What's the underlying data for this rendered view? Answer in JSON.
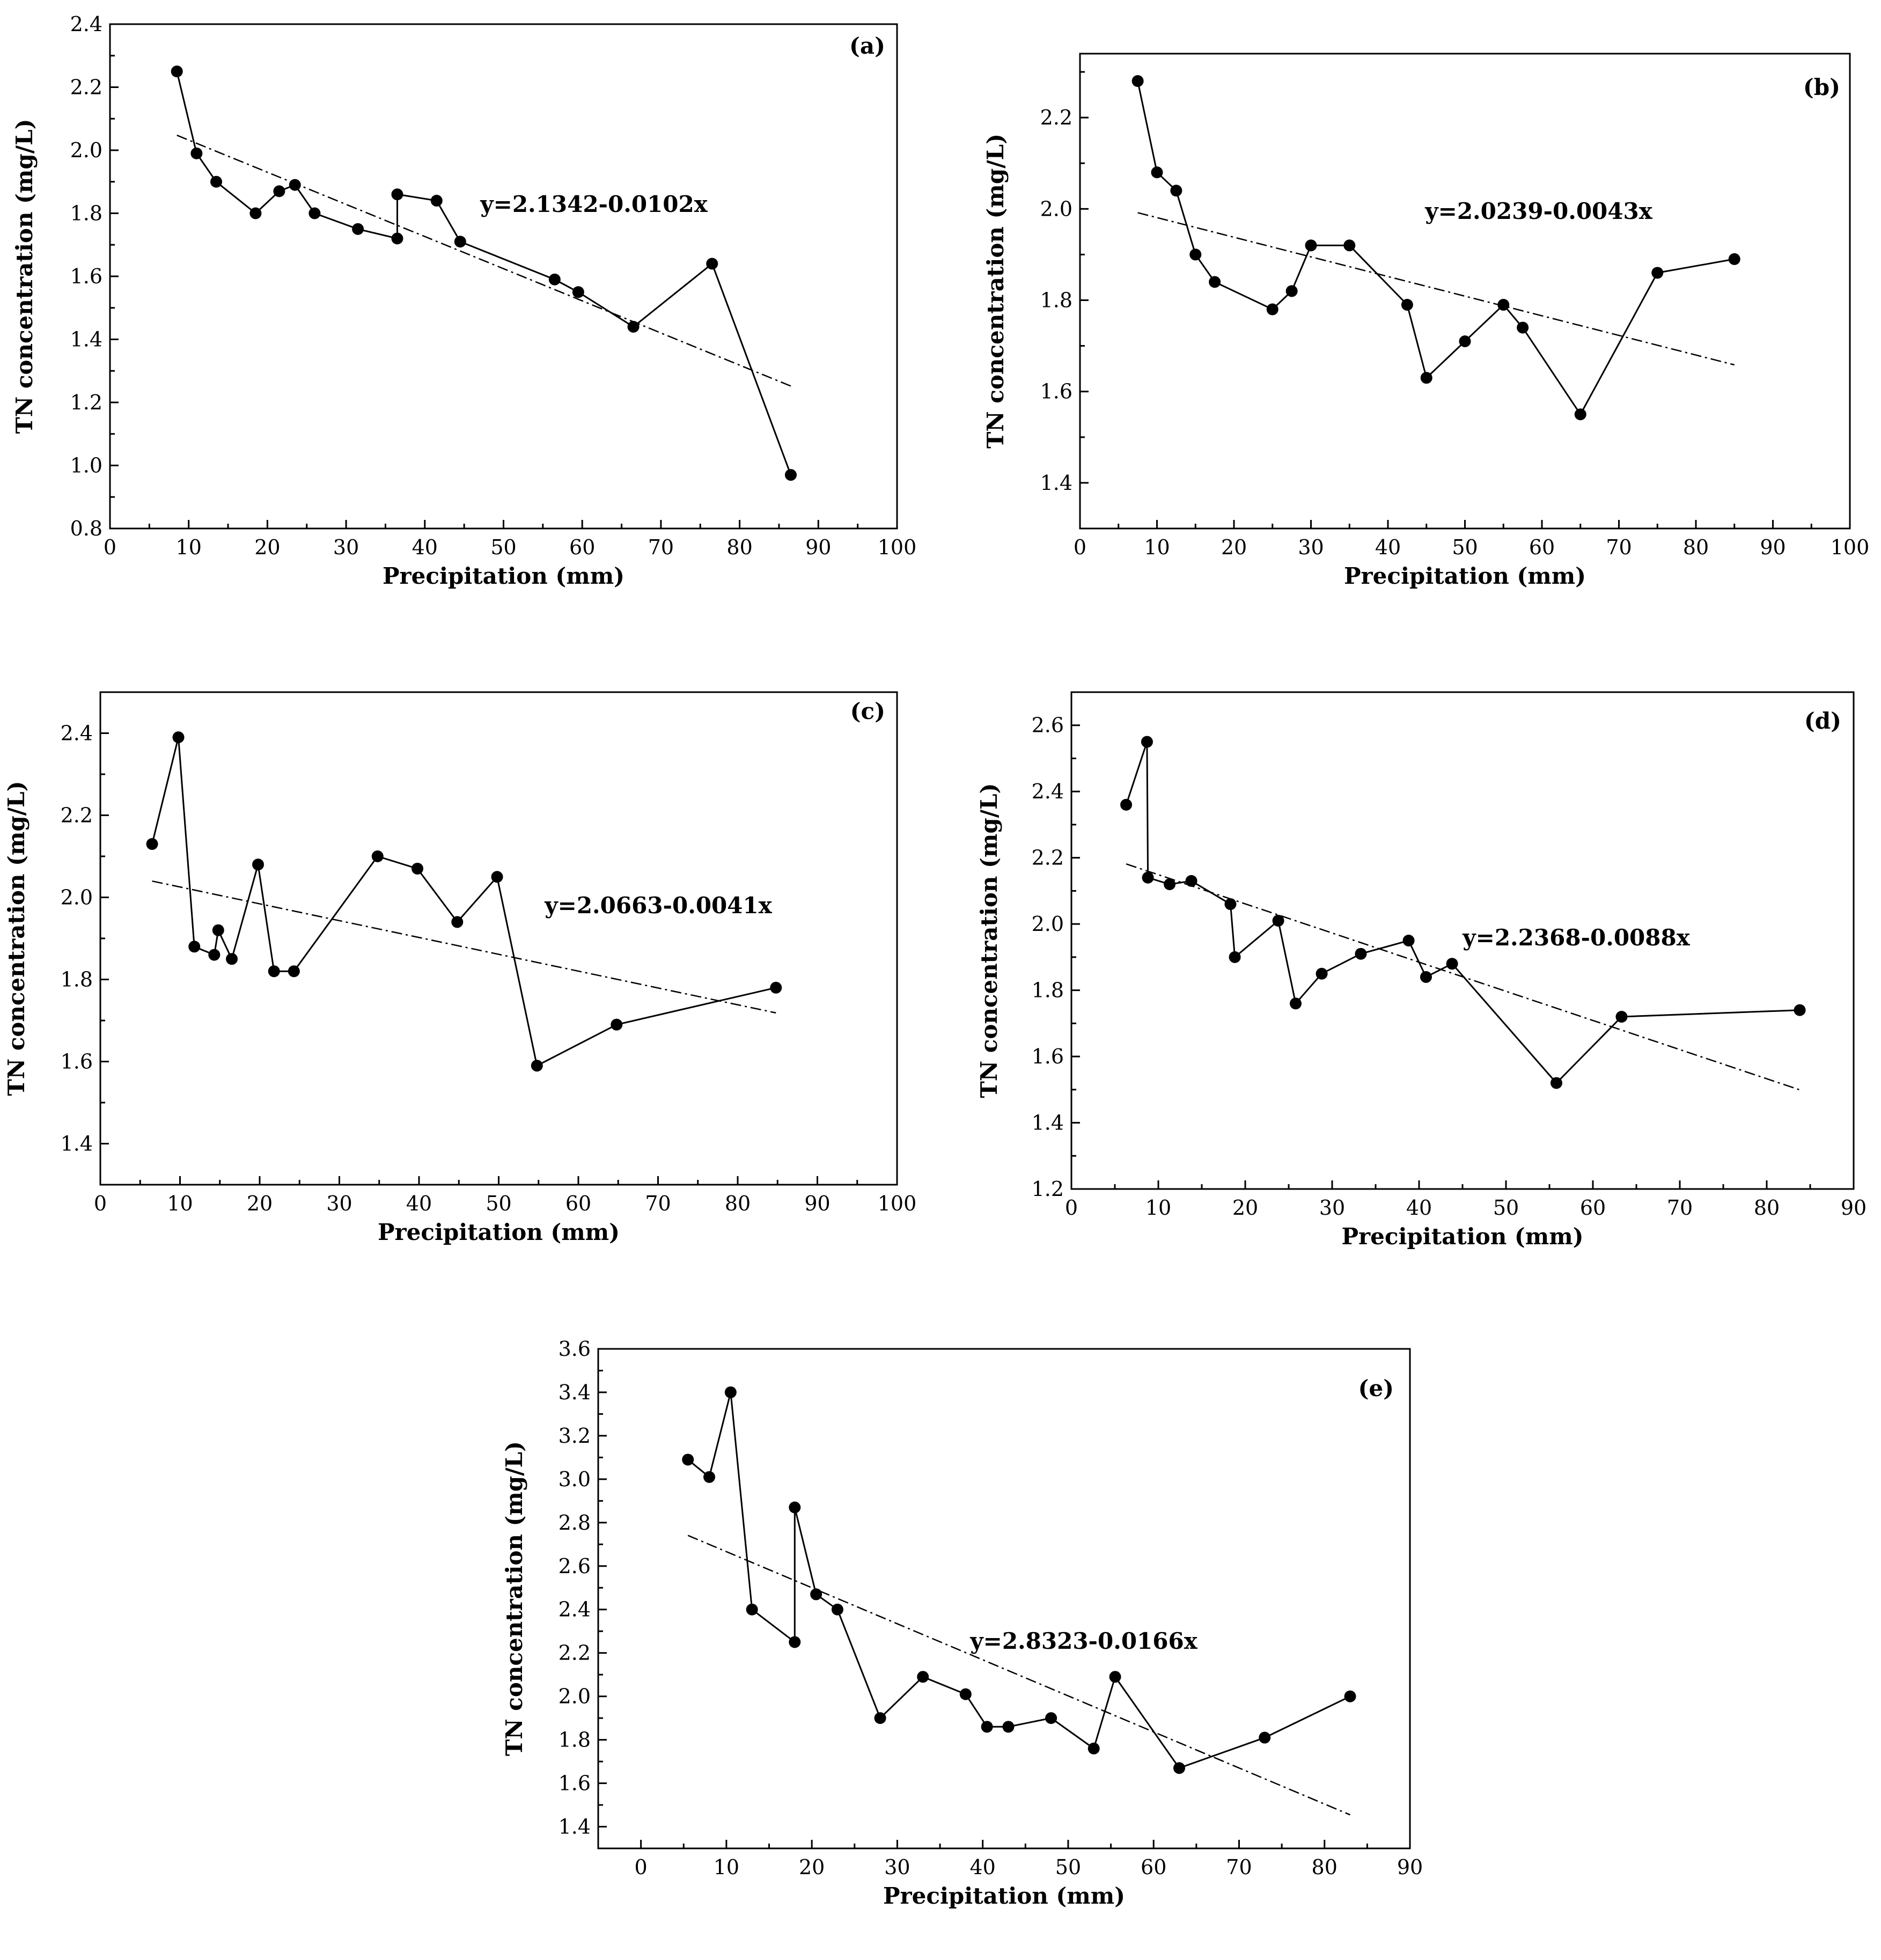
{
  "chart_data": [
    {
      "type": "line",
      "panel_label": "(a)",
      "xlabel": "Precipitation (mm)",
      "ylabel": "TN concentration (mg/L)",
      "xlim": [
        0,
        100
      ],
      "ylim": [
        0.8,
        2.4
      ],
      "xticks": [
        0,
        10,
        20,
        30,
        40,
        50,
        60,
        70,
        80,
        90,
        100
      ],
      "yticks": [
        0.8,
        1.0,
        1.2,
        1.4,
        1.6,
        1.8,
        2.0,
        2.2,
        2.4
      ],
      "x_tick_labels": [
        "0",
        "10",
        "20",
        "30",
        "40",
        "50",
        "60",
        "70",
        "80",
        "90",
        "100"
      ],
      "y_tick_labels": [
        "0.8",
        "1.0",
        "1.2",
        "1.4",
        "1.6",
        "1.8",
        "2.0",
        "2.2",
        "2.4"
      ],
      "equation": "y=2.1342-0.0102x",
      "series": [
        {
          "name": "TN concentration",
          "x": [
            8.5,
            11,
            13.5,
            18.5,
            21.5,
            23.5,
            26,
            31.5,
            36.5,
            36.5,
            41.5,
            44.5,
            56.5,
            59.5,
            66.5,
            76.5,
            86.5
          ],
          "y": [
            2.25,
            1.99,
            1.9,
            1.8,
            1.87,
            1.89,
            1.8,
            1.75,
            1.72,
            1.86,
            1.84,
            1.71,
            1.59,
            1.55,
            1.44,
            1.64,
            0.97
          ]
        }
      ],
      "trendline": {
        "x": [
          8.5,
          86.5
        ]
      }
    },
    {
      "type": "line",
      "panel_label": "(b)",
      "xlabel": "Precipitation (mm)",
      "ylabel": "TN concentration (mg/L)",
      "xlim": [
        0,
        100
      ],
      "ylim": [
        1.3,
        2.34
      ],
      "xticks": [
        0,
        10,
        20,
        30,
        40,
        50,
        60,
        70,
        80,
        90,
        100
      ],
      "yticks": [
        1.4,
        1.6,
        1.8,
        2.0,
        2.2
      ],
      "x_tick_labels": [
        "0",
        "10",
        "20",
        "30",
        "40",
        "50",
        "60",
        "70",
        "80",
        "90",
        "100"
      ],
      "y_tick_labels": [
        "1.4",
        "1.6",
        "1.8",
        "2.0",
        "2.2"
      ],
      "equation": "y=2.0239-0.0043x",
      "series": [
        {
          "name": "TN concentration",
          "x": [
            7.5,
            10,
            12.5,
            15,
            17.5,
            25,
            27.5,
            30,
            35,
            42.5,
            45,
            50,
            55,
            57.5,
            65,
            75,
            85
          ],
          "y": [
            2.28,
            2.08,
            2.04,
            1.9,
            1.84,
            1.78,
            1.82,
            1.92,
            1.92,
            1.79,
            1.63,
            1.71,
            1.79,
            1.74,
            1.55,
            1.86,
            1.89
          ]
        }
      ],
      "trendline": {
        "x": [
          7.5,
          85
        ]
      }
    },
    {
      "type": "line",
      "panel_label": "(c)",
      "xlabel": "Precipitation (mm)",
      "ylabel": "TN concentration (mg/L)",
      "xlim": [
        0,
        100
      ],
      "ylim": [
        1.3,
        2.5
      ],
      "xticks": [
        0,
        10,
        20,
        30,
        40,
        50,
        60,
        70,
        80,
        90,
        100
      ],
      "yticks": [
        1.4,
        1.6,
        1.8,
        2.0,
        2.2,
        2.4
      ],
      "x_tick_labels": [
        "0",
        "10",
        "20",
        "30",
        "40",
        "50",
        "60",
        "70",
        "80",
        "90",
        "100"
      ],
      "y_tick_labels": [
        "1.4",
        "1.6",
        "1.8",
        "2.0",
        "2.2",
        "2.4"
      ],
      "equation": "y=2.0663-0.0041x",
      "series": [
        {
          "name": "TN concentration",
          "x": [
            6.5,
            9.8,
            11.8,
            14.3,
            14.8,
            16.5,
            19.8,
            21.8,
            24.3,
            34.8,
            39.8,
            44.8,
            49.8,
            54.8,
            64.8,
            84.8
          ],
          "y": [
            2.13,
            2.39,
            1.88,
            1.86,
            1.92,
            1.85,
            2.08,
            1.82,
            1.82,
            2.1,
            2.07,
            1.94,
            2.05,
            1.59,
            1.69,
            1.78
          ]
        }
      ],
      "trendline": {
        "x": [
          6.5,
          84.8
        ]
      }
    },
    {
      "type": "line",
      "panel_label": "(d)",
      "xlabel": "Precipitation (mm)",
      "ylabel": "TN concentration (mg/L)",
      "xlim": [
        0,
        90
      ],
      "ylim": [
        1.2,
        2.7
      ],
      "xticks": [
        0,
        10,
        20,
        30,
        40,
        50,
        60,
        70,
        80,
        90
      ],
      "yticks": [
        1.2,
        1.4,
        1.6,
        1.8,
        2.0,
        2.2,
        2.4,
        2.6
      ],
      "x_tick_labels": [
        "0",
        "10",
        "20",
        "30",
        "40",
        "50",
        "60",
        "70",
        "80",
        "90"
      ],
      "y_tick_labels": [
        "1.2",
        "1.4",
        "1.6",
        "1.8",
        "2.0",
        "2.2",
        "2.4",
        "2.6"
      ],
      "equation": "y=2.2368-0.0088x",
      "series": [
        {
          "name": "TN concentration",
          "x": [
            6.3,
            8.7,
            8.8,
            11.3,
            13.8,
            18.3,
            18.8,
            23.8,
            25.8,
            28.8,
            33.3,
            38.8,
            40.8,
            43.8,
            55.8,
            63.3,
            83.8
          ],
          "y": [
            2.36,
            2.55,
            2.14,
            2.12,
            2.13,
            2.06,
            1.9,
            2.01,
            1.76,
            1.85,
            1.91,
            1.95,
            1.84,
            1.88,
            1.52,
            1.72,
            1.74
          ]
        }
      ],
      "trendline": {
        "x": [
          6.3,
          83.8
        ]
      }
    },
    {
      "type": "line",
      "panel_label": "(e)",
      "xlabel": "Precipitation (mm)",
      "ylabel": "TN concentration (mg/L)",
      "xlim": [
        -5,
        90
      ],
      "ylim": [
        1.3,
        3.6
      ],
      "xticks": [
        0,
        10,
        20,
        30,
        40,
        50,
        60,
        70,
        80,
        90
      ],
      "yticks": [
        1.4,
        1.6,
        1.8,
        2.0,
        2.2,
        2.4,
        2.6,
        2.8,
        3.0,
        3.2,
        3.4,
        3.6
      ],
      "x_tick_labels": [
        "0",
        "10",
        "20",
        "30",
        "40",
        "50",
        "60",
        "70",
        "80",
        "90"
      ],
      "y_tick_labels": [
        "1.4",
        "1.6",
        "1.8",
        "2.0",
        "2.2",
        "2.4",
        "2.6",
        "2.8",
        "3.0",
        "3.2",
        "3.4",
        "3.6"
      ],
      "equation": "y=2.8323-0.0166x",
      "series": [
        {
          "name": "TN concentration",
          "x": [
            5.5,
            8,
            10.5,
            13,
            18,
            18,
            20.5,
            23,
            28,
            33,
            38,
            40.5,
            43,
            48,
            53,
            55.5,
            63,
            73,
            83
          ],
          "y": [
            3.09,
            3.01,
            3.4,
            2.4,
            2.25,
            2.87,
            2.47,
            2.4,
            1.9,
            2.09,
            2.01,
            1.86,
            1.86,
            1.9,
            1.76,
            2.09,
            1.67,
            1.81,
            2.0
          ]
        }
      ],
      "trendline": {
        "x": [
          5.5,
          83
        ]
      }
    }
  ]
}
